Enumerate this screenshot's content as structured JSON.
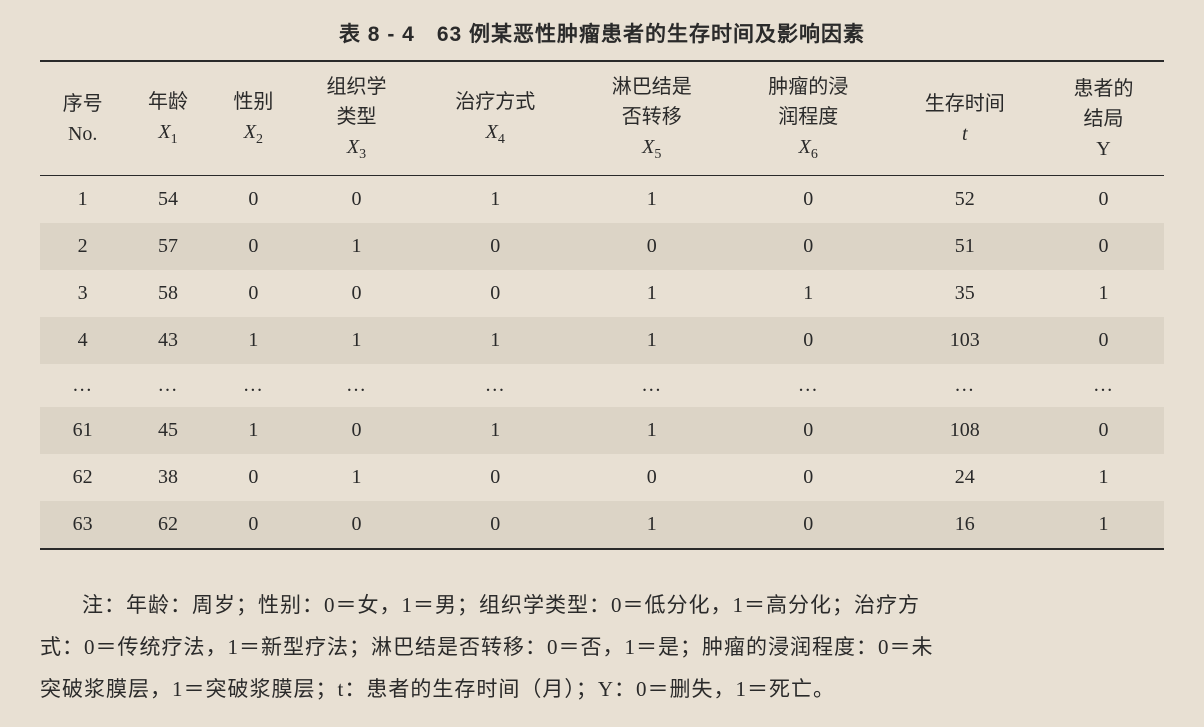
{
  "title": "表 8 - 4　63 例某恶性肿瘤患者的生存时间及影响因素",
  "title_fontsize": 21,
  "table": {
    "type": "table",
    "background_color": "#e8e0d3",
    "stripe_color": "#dcd4c6",
    "border_color": "#2a2a2a",
    "text_color": "#2a2a2a",
    "header_fontsize": 20,
    "cell_fontsize": 20,
    "columns": [
      {
        "line1": "序号",
        "line2": "No.",
        "is_italic_sub": false
      },
      {
        "line1": "年龄",
        "line2": "X1",
        "is_italic_sub": true
      },
      {
        "line1": "性别",
        "line2": "X2",
        "is_italic_sub": true
      },
      {
        "line1": "组织学类型",
        "line2": "X3",
        "is_italic_sub": true
      },
      {
        "line1": "治疗方式",
        "line2": "X4",
        "is_italic_sub": true
      },
      {
        "line1": "淋巴结是否转移",
        "line2": "X5",
        "is_italic_sub": true
      },
      {
        "line1": "肿瘤的浸润程度",
        "line2": "X6",
        "is_italic_sub": true
      },
      {
        "line1": "生存时间",
        "line2": "t",
        "is_italic_sub": false
      },
      {
        "line1": "患者的结局",
        "line2": "Y",
        "is_italic_sub": false
      }
    ],
    "rows": [
      [
        "1",
        "54",
        "0",
        "0",
        "1",
        "1",
        "0",
        "52",
        "0"
      ],
      [
        "2",
        "57",
        "0",
        "1",
        "0",
        "0",
        "0",
        "51",
        "0"
      ],
      [
        "3",
        "58",
        "0",
        "0",
        "0",
        "1",
        "1",
        "35",
        "1"
      ],
      [
        "4",
        "43",
        "1",
        "1",
        "1",
        "1",
        "0",
        "103",
        "0"
      ],
      [
        "…",
        "…",
        "…",
        "…",
        "…",
        "…",
        "…",
        "…",
        "…"
      ],
      [
        "61",
        "45",
        "1",
        "0",
        "1",
        "1",
        "0",
        "108",
        "0"
      ],
      [
        "62",
        "38",
        "0",
        "1",
        "0",
        "0",
        "0",
        "24",
        "1"
      ],
      [
        "63",
        "62",
        "0",
        "0",
        "0",
        "1",
        "0",
        "16",
        "1"
      ]
    ],
    "ellipsis_row_index": 4
  },
  "footnote": {
    "fontsize": 21,
    "text_lines": [
      "注：年龄：周岁；性别：0＝女，1＝男；组织学类型：0＝低分化，1＝高分化；治疗方",
      "式：0＝传统疗法，1＝新型疗法；淋巴结是否转移：0＝否，1＝是；肿瘤的浸润程度：0＝未",
      "突破浆膜层，1＝突破浆膜层；t：患者的生存时间（月）；Y：0＝删失，1＝死亡。"
    ]
  }
}
